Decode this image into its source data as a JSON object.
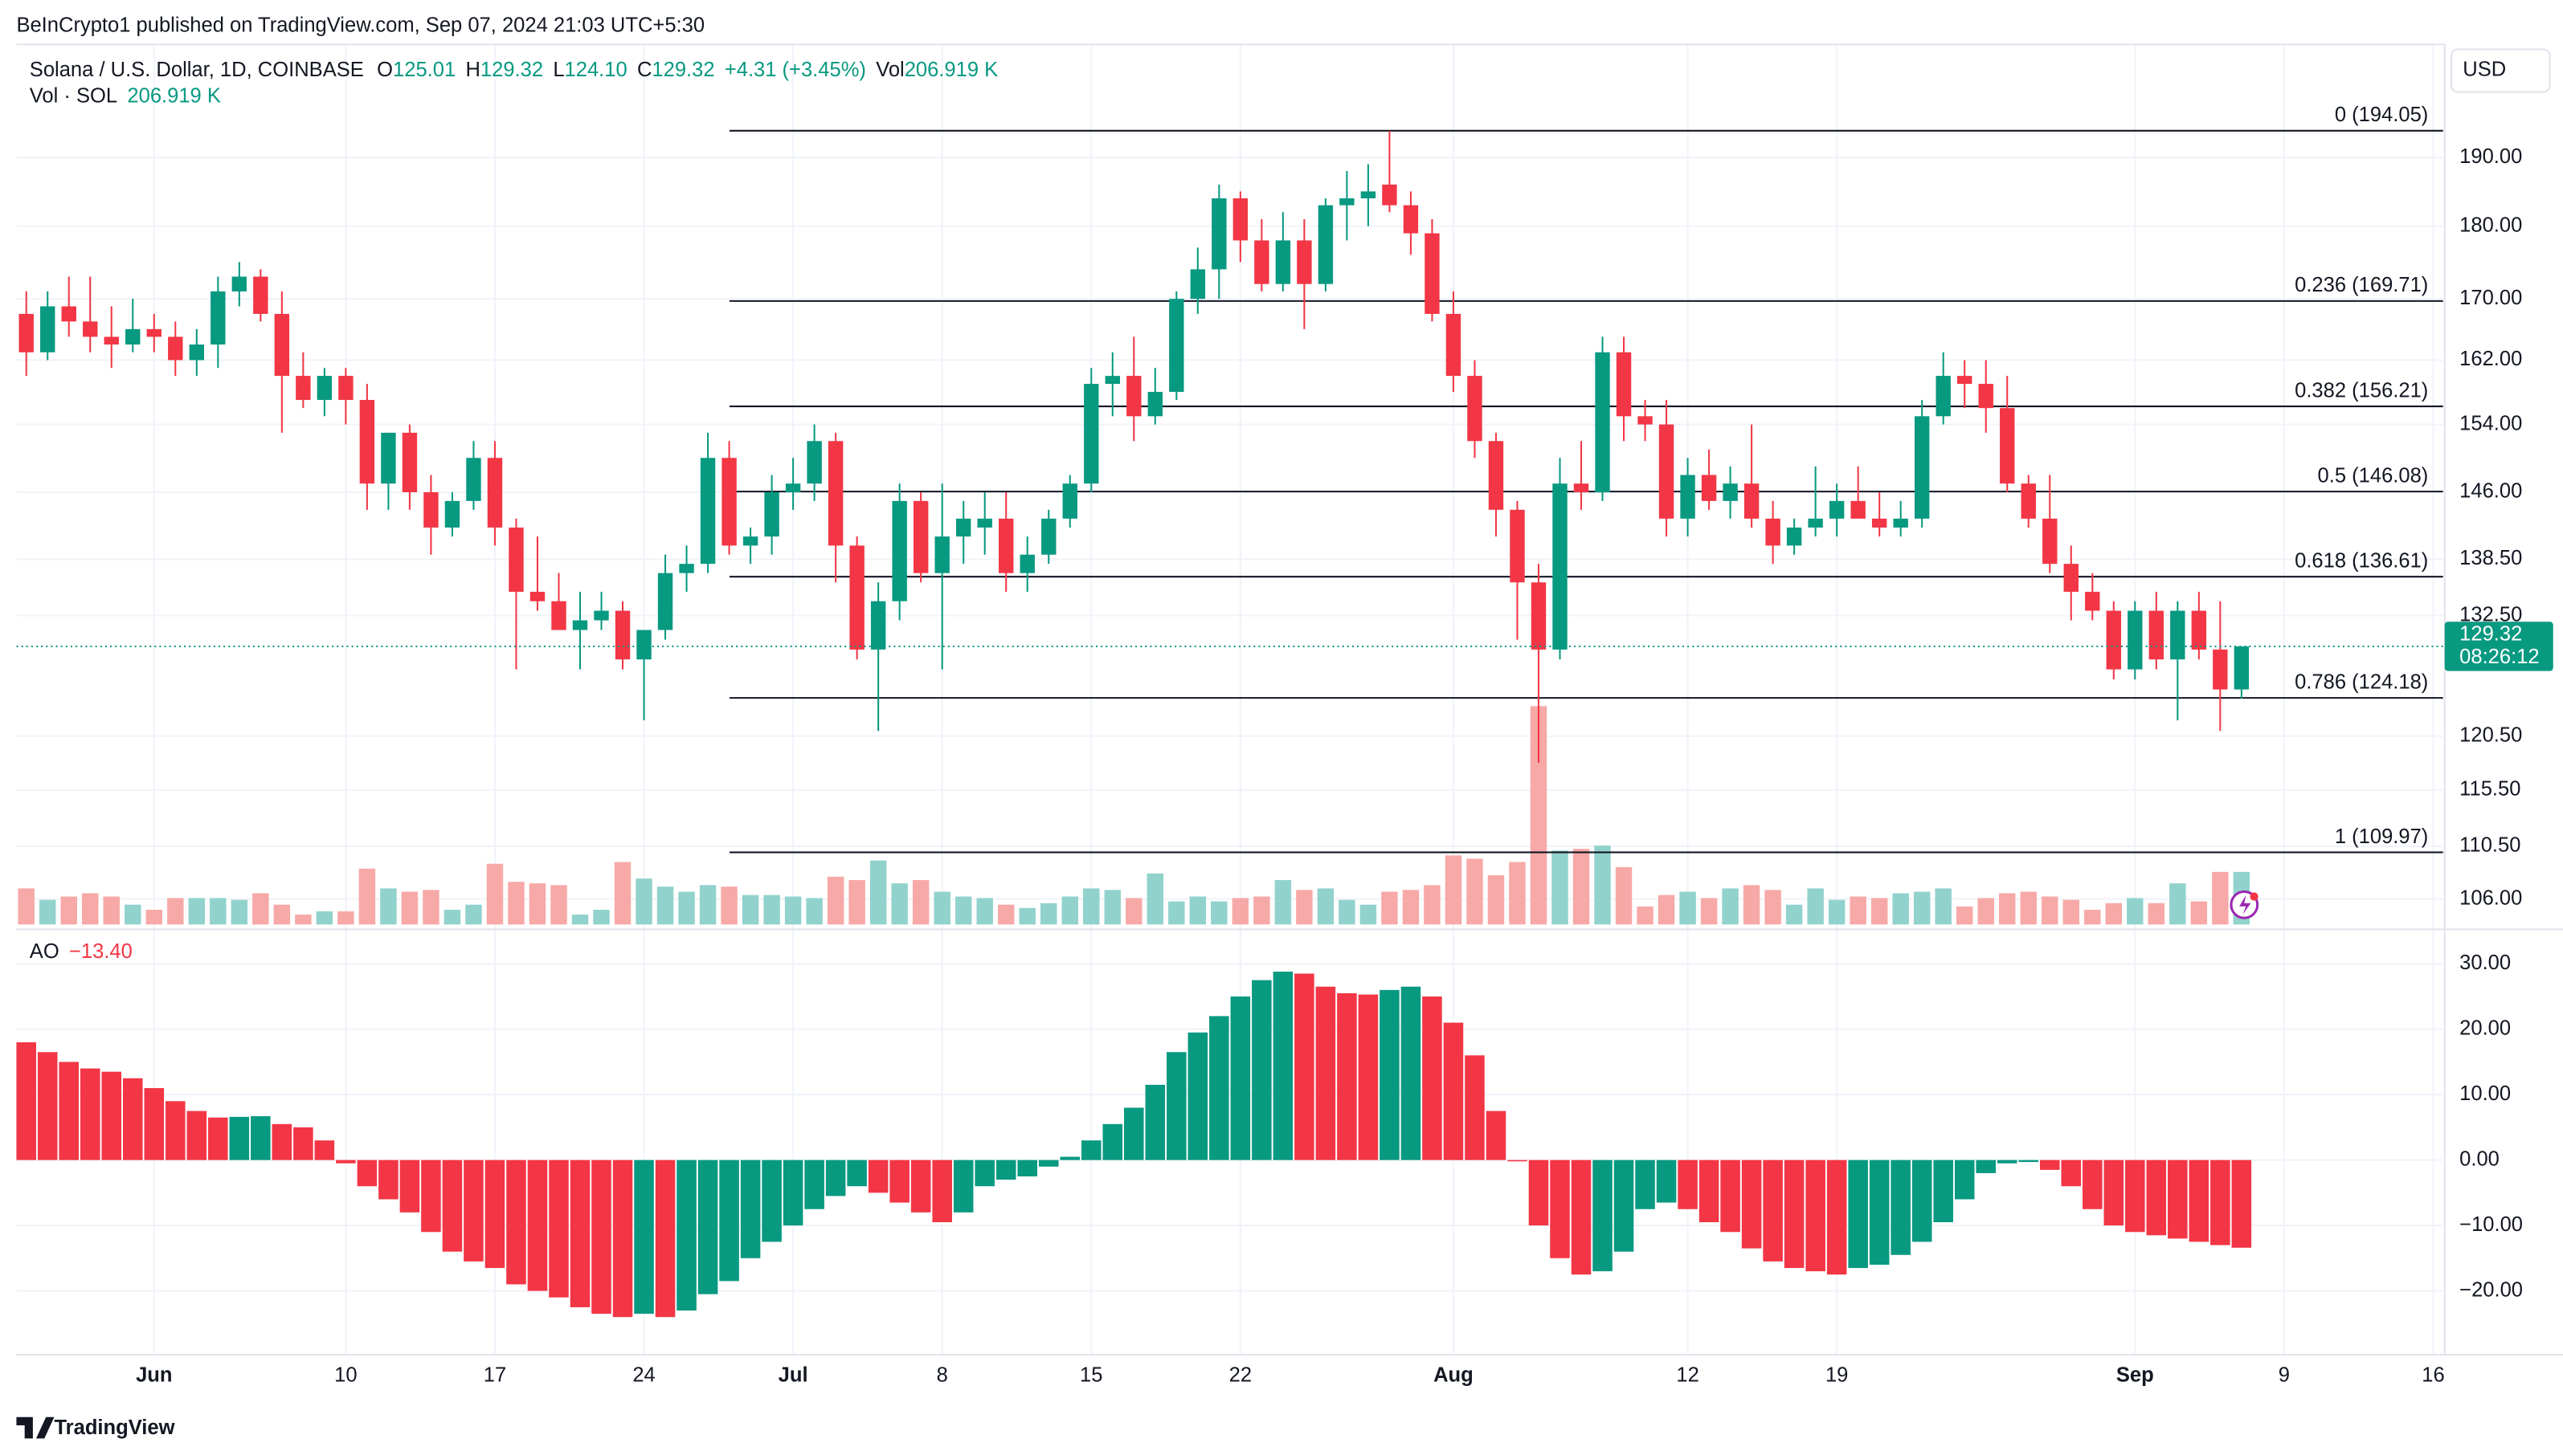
{
  "header": {
    "published": "BeInCrypto1 published on TradingView.com, Sep 07, 2024 21:03 UTC+5:30",
    "symbol": "Solana / U.S. Dollar, 1D, COINBASE",
    "fields": [
      {
        "key": "O",
        "value": "125.01"
      },
      {
        "key": "H",
        "value": "129.32"
      },
      {
        "key": "L",
        "value": "124.10"
      },
      {
        "key": "C",
        "value": "129.32"
      }
    ],
    "change": "+4.31 (+3.45%)",
    "vol_key": "Vol",
    "vol_value": "206.919 K",
    "volume_title": "Vol · SOL",
    "volume_value": "206.919 K",
    "currency": "USD",
    "badge_price": "129.32",
    "badge_timer": "08:26:12",
    "logo": "TradingView"
  },
  "chart_data": [
    {
      "type": "candlestick",
      "log_scale": true,
      "grid": true,
      "up_color": "#089981",
      "down_color": "#f23645",
      "volume_up_color": "#92d2cc",
      "volume_down_color": "#f7a9a7",
      "x": [
        "May 26",
        "May 27",
        "May 28",
        "May 29",
        "May 30",
        "May 31",
        "Jun 1",
        "Jun 2",
        "Jun 3",
        "Jun 4",
        "Jun 5",
        "Jun 6",
        "Jun 7",
        "Jun 8",
        "Jun 9",
        "Jun 10",
        "Jun 11",
        "Jun 12",
        "Jun 13",
        "Jun 14",
        "Jun 15",
        "Jun 16",
        "Jun 17",
        "Jun 18",
        "Jun 19",
        "Jun 20",
        "Jun 21",
        "Jun 22",
        "Jun 23",
        "Jun 24",
        "Jun 25",
        "Jun 26",
        "Jun 27",
        "Jun 28",
        "Jun 29",
        "Jun 30",
        "Jul 1",
        "Jul 2",
        "Jul 3",
        "Jul 4",
        "Jul 5",
        "Jul 6",
        "Jul 7",
        "Jul 8",
        "Jul 9",
        "Jul 10",
        "Jul 11",
        "Jul 12",
        "Jul 13",
        "Jul 14",
        "Jul 15",
        "Jul 16",
        "Jul 17",
        "Jul 18",
        "Jul 19",
        "Jul 20",
        "Jul 21",
        "Jul 22",
        "Jul 23",
        "Jul 24",
        "Jul 25",
        "Jul 26",
        "Jul 27",
        "Jul 28",
        "Jul 29",
        "Jul 30",
        "Jul 31",
        "Aug 1",
        "Aug 2",
        "Aug 3",
        "Aug 4",
        "Aug 5",
        "Aug 6",
        "Aug 7",
        "Aug 8",
        "Aug 9",
        "Aug 10",
        "Aug 11",
        "Aug 12",
        "Aug 13",
        "Aug 14",
        "Aug 15",
        "Aug 16",
        "Aug 17",
        "Aug 18",
        "Aug 19",
        "Aug 20",
        "Aug 21",
        "Aug 22",
        "Aug 23",
        "Aug 24",
        "Aug 25",
        "Aug 26",
        "Aug 27",
        "Aug 28",
        "Aug 29",
        "Aug 30",
        "Aug 31",
        "Sep 1",
        "Sep 2",
        "Sep 3",
        "Sep 4",
        "Sep 5",
        "Sep 6",
        "Sep 7"
      ],
      "ohlc": [
        [
          168,
          171,
          160,
          163
        ],
        [
          163,
          171,
          162,
          169
        ],
        [
          169,
          173,
          165,
          167
        ],
        [
          167,
          173,
          163,
          165
        ],
        [
          165,
          169,
          161,
          164
        ],
        [
          164,
          170,
          163,
          166
        ],
        [
          166,
          168,
          163,
          165
        ],
        [
          165,
          167,
          160,
          162
        ],
        [
          162,
          166,
          160,
          164
        ],
        [
          164,
          173,
          161,
          171
        ],
        [
          171,
          175,
          169,
          173
        ],
        [
          173,
          174,
          167,
          168
        ],
        [
          168,
          171,
          153,
          160
        ],
        [
          160,
          163,
          156,
          157
        ],
        [
          157,
          161,
          155,
          160
        ],
        [
          160,
          161,
          154,
          157
        ],
        [
          157,
          159,
          144,
          147
        ],
        [
          147,
          153,
          144,
          153
        ],
        [
          153,
          154,
          144,
          146
        ],
        [
          146,
          148,
          139,
          142
        ],
        [
          142,
          146,
          141,
          145
        ],
        [
          145,
          152,
          144,
          150
        ],
        [
          150,
          152,
          140,
          142
        ],
        [
          142,
          143,
          127,
          135
        ],
        [
          135,
          141,
          133,
          134
        ],
        [
          134,
          137,
          131,
          131
        ],
        [
          131,
          135,
          127,
          132
        ],
        [
          132,
          135,
          131,
          133
        ],
        [
          133,
          134,
          127,
          128
        ],
        [
          128,
          131,
          122,
          131
        ],
        [
          131,
          139,
          130,
          137
        ],
        [
          137,
          140,
          135,
          138
        ],
        [
          138,
          153,
          137,
          150
        ],
        [
          150,
          152,
          139,
          140
        ],
        [
          140,
          142,
          138,
          141
        ],
        [
          141,
          148,
          139,
          146
        ],
        [
          146,
          150,
          144,
          147
        ],
        [
          147,
          154,
          145,
          152
        ],
        [
          152,
          153,
          136,
          140
        ],
        [
          140,
          141,
          128,
          129
        ],
        [
          129,
          136,
          121,
          134
        ],
        [
          134,
          147,
          132,
          145
        ],
        [
          145,
          146,
          136,
          137
        ],
        [
          137,
          147,
          127,
          141
        ],
        [
          141,
          145,
          138,
          143
        ],
        [
          142,
          146,
          139,
          143
        ],
        [
          143,
          146,
          135,
          137
        ],
        [
          137,
          141,
          135,
          139
        ],
        [
          139,
          144,
          138,
          143
        ],
        [
          143,
          148,
          142,
          147
        ],
        [
          147,
          161,
          146,
          159
        ],
        [
          159,
          163,
          155,
          160
        ],
        [
          160,
          165,
          152,
          155
        ],
        [
          155,
          161,
          154,
          158
        ],
        [
          158,
          171,
          157,
          170
        ],
        [
          170,
          177,
          168,
          174
        ],
        [
          174,
          186,
          170,
          184
        ],
        [
          184,
          185,
          175,
          178
        ],
        [
          178,
          181,
          171,
          172
        ],
        [
          172,
          182,
          171,
          178
        ],
        [
          178,
          181,
          166,
          172
        ],
        [
          172,
          184,
          171,
          183
        ],
        [
          183,
          188,
          178,
          184
        ],
        [
          184,
          189,
          180,
          185
        ],
        [
          186,
          194,
          182,
          183
        ],
        [
          183,
          185,
          176,
          179
        ],
        [
          179,
          181,
          167,
          168
        ],
        [
          168,
          171,
          158,
          160
        ],
        [
          160,
          162,
          150,
          152
        ],
        [
          152,
          153,
          141,
          144
        ],
        [
          144,
          145,
          130,
          136
        ],
        [
          136,
          138,
          118,
          129
        ],
        [
          129,
          150,
          128,
          147
        ],
        [
          147,
          152,
          144,
          146
        ],
        [
          146,
          165,
          145,
          163
        ],
        [
          163,
          165,
          152,
          155
        ],
        [
          155,
          157,
          152,
          154
        ],
        [
          154,
          157,
          141,
          143
        ],
        [
          143,
          150,
          141,
          148
        ],
        [
          148,
          151,
          144,
          145
        ],
        [
          145,
          149,
          143,
          147
        ],
        [
          147,
          154,
          142,
          143
        ],
        [
          143,
          145,
          138,
          140
        ],
        [
          140,
          143,
          139,
          142
        ],
        [
          142,
          149,
          141,
          143
        ],
        [
          143,
          147,
          141,
          145
        ],
        [
          145,
          149,
          143,
          143
        ],
        [
          143,
          146,
          141,
          142
        ],
        [
          142,
          145,
          141,
          143
        ],
        [
          143,
          157,
          142,
          155
        ],
        [
          155,
          163,
          154,
          160
        ],
        [
          160,
          162,
          156,
          159
        ],
        [
          159,
          162,
          153,
          156
        ],
        [
          156,
          160,
          146,
          147
        ],
        [
          147,
          148,
          142,
          143
        ],
        [
          143,
          148,
          137,
          138
        ],
        [
          138,
          140,
          132,
          135
        ],
        [
          135,
          137,
          132,
          133
        ],
        [
          133,
          134,
          126,
          127
        ],
        [
          127,
          134,
          126,
          133
        ],
        [
          133,
          135,
          127,
          128
        ],
        [
          128,
          134,
          122,
          133
        ],
        [
          133,
          135,
          128,
          129
        ],
        [
          129,
          134,
          121,
          125.01
        ],
        [
          125.01,
          129.32,
          124.1,
          129.32
        ]
      ],
      "volume": [
        142,
        97,
        110,
        123,
        110,
        78,
        58,
        104,
        104,
        104,
        97,
        123,
        78,
        39,
        52,
        52,
        220,
        142,
        129,
        136,
        58,
        78,
        239,
        168,
        162,
        155,
        39,
        58,
        246,
        181,
        149,
        129,
        155,
        149,
        116,
        116,
        110,
        104,
        188,
        175,
        252,
        162,
        175,
        129,
        110,
        104,
        78,
        65,
        84,
        110,
        142,
        136,
        104,
        201,
        91,
        110,
        91,
        104,
        110,
        175,
        136,
        142,
        97,
        78,
        129,
        136,
        155,
        272,
        259,
        194,
        246,
        860,
        291,
        298,
        311,
        226,
        71,
        116,
        129,
        104,
        142,
        155,
        136,
        78,
        142,
        97,
        110,
        104,
        123,
        129,
        142,
        71,
        104,
        123,
        129,
        110,
        97,
        58,
        84,
        104,
        84,
        162,
        91,
        207,
        206.919
      ],
      "xlim": [
        "May 26",
        "Sep 16"
      ],
      "xticks": [
        {
          "value": "Jun 1",
          "label": "Jun"
        },
        {
          "value": "Jun 10",
          "label": "10"
        },
        {
          "value": "Jun 17",
          "label": "17"
        },
        {
          "value": "Jun 24",
          "label": "24"
        },
        {
          "value": "Jul 1",
          "label": "Jul"
        },
        {
          "value": "Jul 8",
          "label": "8"
        },
        {
          "value": "Jul 15",
          "label": "15"
        },
        {
          "value": "Jul 22",
          "label": "22"
        },
        {
          "value": "Aug 1",
          "label": "Aug"
        },
        {
          "value": "Aug 12",
          "label": "12"
        },
        {
          "value": "Aug 19",
          "label": "19"
        },
        {
          "value": "Sep 2",
          "label": "Sep"
        },
        {
          "value": "Sep 9",
          "label": "9"
        },
        {
          "value": "Sep 16",
          "label": "16"
        }
      ],
      "ylim": [
        103.9,
        207.7
      ],
      "yticks": [
        {
          "value": 106,
          "label": "106.00"
        },
        {
          "value": 110.5,
          "label": "110.50"
        },
        {
          "value": 115.5,
          "label": "115.50"
        },
        {
          "value": 120.5,
          "label": "120.50"
        },
        {
          "value": 132.5,
          "label": "132.50"
        },
        {
          "value": 138.5,
          "label": "138.50"
        },
        {
          "value": 146,
          "label": "146.00"
        },
        {
          "value": 154,
          "label": "154.00"
        },
        {
          "value": 162,
          "label": "162.00"
        },
        {
          "value": 170,
          "label": "170.00"
        },
        {
          "value": 180,
          "label": "180.00"
        },
        {
          "value": 190,
          "label": "190.00"
        }
      ],
      "fib_levels": [
        {
          "value": 194.05,
          "label": "0 (194.05)"
        },
        {
          "value": 169.71,
          "label": "0.236 (169.71)"
        },
        {
          "value": 156.21,
          "label": "0.382 (156.21)"
        },
        {
          "value": 146.08,
          "label": "0.5 (146.08)"
        },
        {
          "value": 136.61,
          "label": "0.618 (136.61)"
        },
        {
          "value": 124.18,
          "label": "0.786 (124.18)"
        },
        {
          "value": 109.97,
          "label": "1 (109.97)"
        }
      ]
    },
    {
      "type": "bar",
      "title": "AO",
      "last_label": "−13.40",
      "up_color": "#089981",
      "down_color": "#f23645",
      "values": [
        18,
        16.5,
        15,
        14,
        13.5,
        12.5,
        11,
        9,
        7.5,
        6.5,
        6.6,
        6.7,
        5.5,
        5,
        3,
        -0.5,
        -4,
        -6,
        -8,
        -11,
        -14,
        -15.5,
        -16.5,
        -19,
        -20,
        -21,
        -22.5,
        -23.5,
        -24,
        -23.5,
        -24,
        -23,
        -20.5,
        -18.5,
        -15,
        -12.5,
        -10,
        -7.5,
        -5.5,
        -4,
        -5,
        -6.5,
        -8,
        -9.5,
        -8,
        -4,
        -3,
        -2.5,
        -1,
        0.5,
        3,
        5.5,
        8,
        11.5,
        16.5,
        19.5,
        22,
        25,
        27.5,
        28.8,
        28.5,
        26.5,
        25.5,
        25.3,
        26,
        26.5,
        25,
        21,
        16,
        7.5,
        -0.2,
        -10,
        -15,
        -17.5,
        -17,
        -14,
        -7.5,
        -6.5,
        -7.5,
        -9.5,
        -11,
        -13.5,
        -15.5,
        -16.5,
        -17,
        -17.5,
        -16.5,
        -16,
        -14.5,
        -12.5,
        -9.5,
        -6,
        -2,
        -0.5,
        -0.3,
        -1.5,
        -4,
        -7.5,
        -10,
        -11,
        -11.5,
        -12,
        -12.5,
        -13,
        -13.4
      ],
      "ylim": [
        -29,
        34.25
      ],
      "yticks": [
        {
          "value": -20,
          "label": "−20.00"
        },
        {
          "value": -10,
          "label": "−10.00"
        },
        {
          "value": 0,
          "label": "0.00"
        },
        {
          "value": 10,
          "label": "10.00"
        },
        {
          "value": 20,
          "label": "20.00"
        },
        {
          "value": 30,
          "label": "30.00"
        }
      ]
    }
  ]
}
